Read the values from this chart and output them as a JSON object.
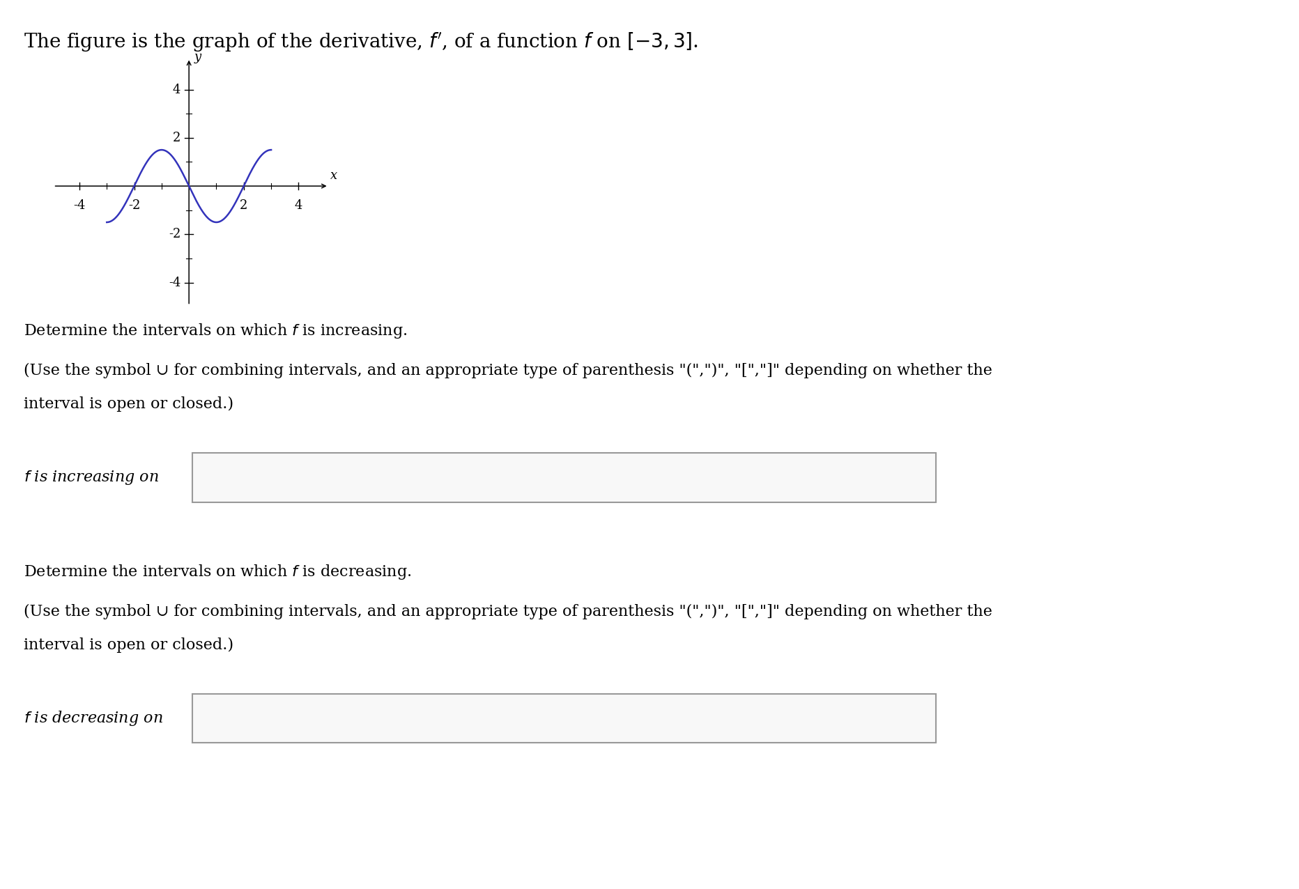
{
  "title_text": "The figure is the graph of the derivative, $f'$, of a function $f$ on $[-3, 3]$.",
  "curve_color": "#3333bb",
  "curve_linewidth": 1.8,
  "background_color": "#ffffff",
  "x_ticks": [
    -4,
    -2,
    2,
    4
  ],
  "y_ticks": [
    -4,
    -2,
    2,
    4
  ],
  "xlim": [
    -5.0,
    5.2
  ],
  "ylim": [
    -5.0,
    5.5
  ],
  "x_label": "x",
  "y_label": "y",
  "text1": "Determine the intervals on which $f$ is increasing.",
  "text2_line1": "(Use the symbol ∪ for combining intervals, and an appropriate type of parenthesis \"(\",\")\", \"[\",\"]\" depending on whether the",
  "text2_line2": "interval is open or closed.)",
  "label_increasing": "$f$ is increasing on",
  "text3": "Determine the intervals on which $f$ is decreasing.",
  "text4_line1": "(Use the symbol ∪ for combining intervals, and an appropriate type of parenthesis \"(\",\")\", \"[\",\"]\" depending on whether the",
  "text4_line2": "interval is open or closed.)",
  "label_decreasing": "$f$ is decreasing on",
  "box_edge_color": "#999999",
  "box_face_color": "#f8f8f8",
  "font_size_title": 20,
  "font_size_text": 16,
  "font_size_label": 16,
  "font_size_axis_tick": 13,
  "amplitude": 1.5
}
